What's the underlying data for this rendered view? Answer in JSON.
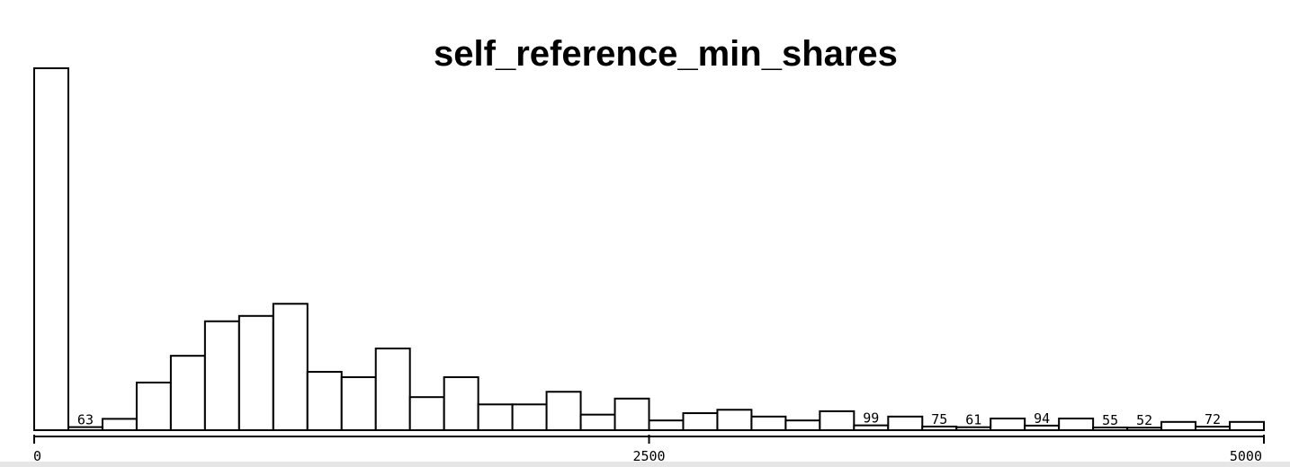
{
  "chart_data": {
    "type": "bar",
    "title": "self_reference_min_shares",
    "xlabel": "",
    "ylabel": "",
    "xlim": [
      0,
      5000
    ],
    "bin_width": 139,
    "x_tick_labels": [
      "0",
      "2500",
      "5000"
    ],
    "x_tick_values": [
      0,
      2500,
      5000
    ],
    "values": [
      7445,
      63,
      233,
      980,
      1530,
      2240,
      2350,
      2600,
      1200,
      1090,
      1680,
      680,
      1090,
      530,
      530,
      790,
      320,
      650,
      200,
      350,
      420,
      280,
      200,
      390,
      99,
      280,
      75,
      61,
      240,
      94,
      240,
      55,
      52,
      170,
      72,
      170
    ],
    "data_labels": [
      {
        "bin": 1,
        "text": "63"
      },
      {
        "bin": 24,
        "text": "99"
      },
      {
        "bin": 26,
        "text": "75"
      },
      {
        "bin": 27,
        "text": "61"
      },
      {
        "bin": 29,
        "text": "94"
      },
      {
        "bin": 31,
        "text": "55"
      },
      {
        "bin": 32,
        "text": "52"
      },
      {
        "bin": 34,
        "text": "72"
      }
    ],
    "grid": false,
    "legend": "none"
  }
}
